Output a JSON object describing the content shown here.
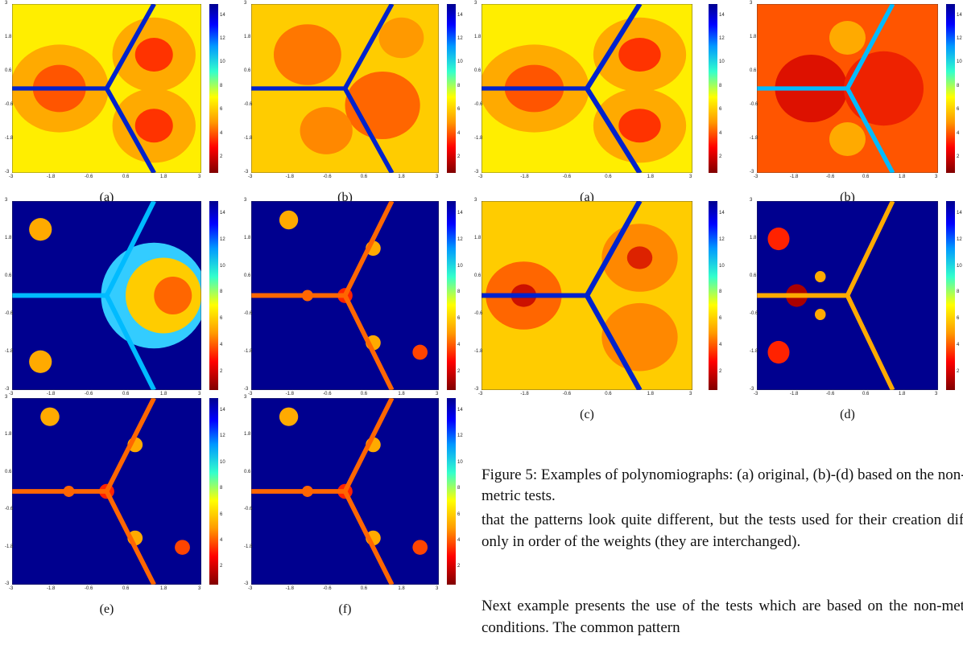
{
  "figure_left": {
    "panels": [
      {
        "label": "(a)"
      },
      {
        "label": "(b)"
      },
      {
        "label": "(c)"
      },
      {
        "label": "(d)"
      },
      {
        "label": "(e)"
      },
      {
        "label": "(f)"
      }
    ]
  },
  "figure_right": {
    "panels": [
      {
        "label": "(a)"
      },
      {
        "label": "(b)"
      },
      {
        "label": "(c)"
      },
      {
        "label": "(d)"
      }
    ],
    "caption": "Figure 5: Examples of polynomiographs: (a) original, (b)-(d) based on the non-metric tests."
  },
  "axis_ticks": {
    "x": [
      "-3",
      "-1.8",
      "-0.6",
      "0.6",
      "1.8",
      "3"
    ],
    "y": [
      "3",
      "1.8",
      "0.6",
      "-0.6",
      "-1.8",
      "-3"
    ]
  },
  "colorbar_ticks": [
    "14",
    "12",
    "10",
    "8",
    "6",
    "4",
    "2"
  ],
  "body": {
    "paragraphs": [
      "that the patterns look quite different, but the tests used for their creation differ only in order of the weights (they are interchanged).",
      "Next example presents the use of the tests which are based on the non-metric conditions. The common pattern"
    ]
  }
}
